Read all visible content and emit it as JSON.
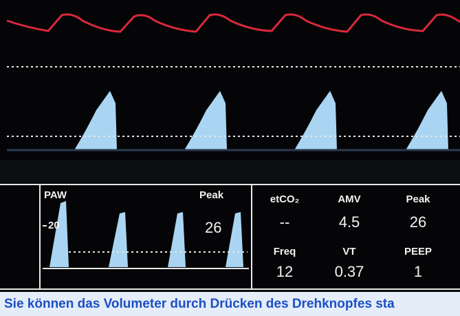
{
  "paw_panel": {
    "label": "PAW",
    "peak_label": "Peak",
    "scale_label": "20",
    "peak_value": "26"
  },
  "parameters": [
    {
      "label": "etCO₂",
      "value": "--"
    },
    {
      "label": "AMV",
      "value": "4.5"
    },
    {
      "label": "Peak",
      "value": "26"
    },
    {
      "label": "Freq",
      "value": "12"
    },
    {
      "label": "VT",
      "value": "0.37"
    },
    {
      "label": "PEEP",
      "value": "1"
    }
  ],
  "message": "Sie können das Volumeter durch Drücken des Drehknopfes sta"
}
